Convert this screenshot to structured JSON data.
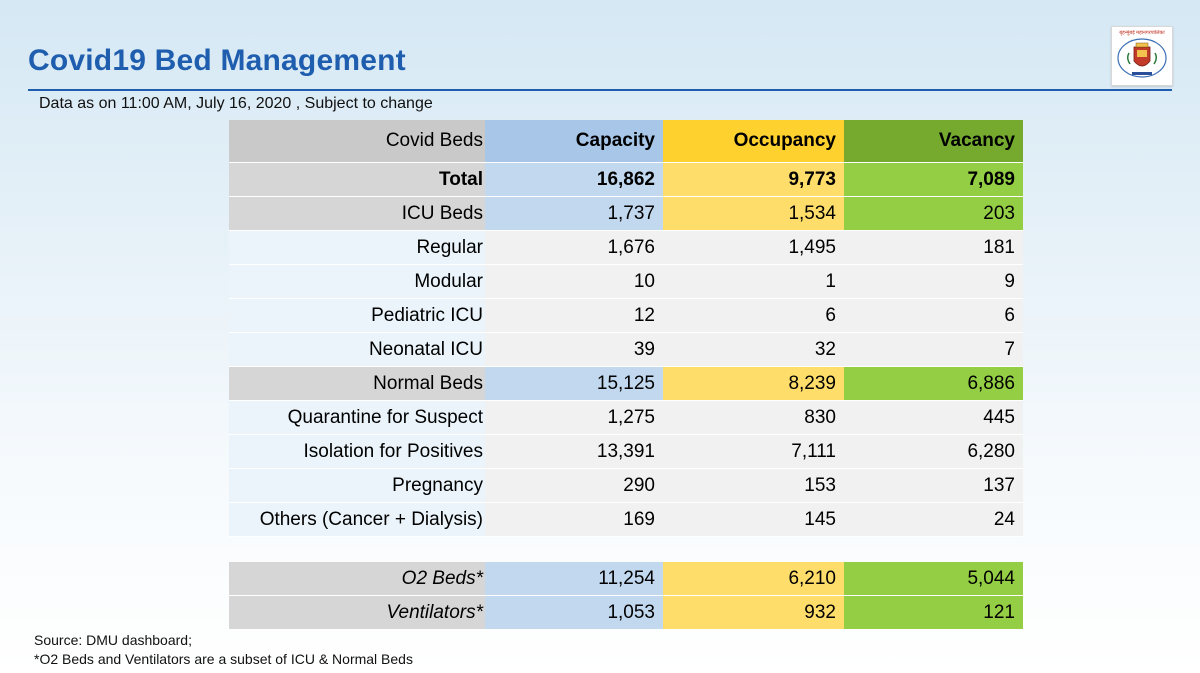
{
  "header": {
    "title": "Covid19 Bed Management",
    "subtitle": "Data as on  11:00 AM, July 16, 2020 , Subject to change",
    "logo_text": "बृहन्मुंबई महानगरपालिका",
    "logo_icon": "municipal-crest-icon"
  },
  "table": {
    "columns": [
      "Covid Beds",
      "Capacity",
      "Occupancy",
      "Vacancy"
    ],
    "rows": [
      {
        "label": "Total",
        "capacity": "16,862",
        "occupancy": "9,773",
        "vacancy": "7,089"
      },
      {
        "label": "ICU Beds",
        "capacity": "1,737",
        "occupancy": "1,534",
        "vacancy": "203"
      },
      {
        "label": "Regular",
        "capacity": "1,676",
        "occupancy": "1,495",
        "vacancy": "181"
      },
      {
        "label": "Modular",
        "capacity": "10",
        "occupancy": "1",
        "vacancy": "9"
      },
      {
        "label": "Pediatric ICU",
        "capacity": "12",
        "occupancy": "6",
        "vacancy": "6"
      },
      {
        "label": "Neonatal ICU",
        "capacity": "39",
        "occupancy": "32",
        "vacancy": "7"
      },
      {
        "label": "Normal Beds",
        "capacity": "15,125",
        "occupancy": "8,239",
        "vacancy": "6,886"
      },
      {
        "label": "Quarantine for Suspect",
        "capacity": "1,275",
        "occupancy": "830",
        "vacancy": "445"
      },
      {
        "label": "Isolation for Positives",
        "capacity": "13,391",
        "occupancy": "7,111",
        "vacancy": "6,280"
      },
      {
        "label": "Pregnancy",
        "capacity": "290",
        "occupancy": "153",
        "vacancy": "137"
      },
      {
        "label": "Others (Cancer + Dialysis)",
        "capacity": "169",
        "occupancy": "145",
        "vacancy": "24"
      }
    ]
  },
  "extra_table": {
    "rows": [
      {
        "label": "O2 Beds*",
        "capacity": "11,254",
        "occupancy": "6,210",
        "vacancy": "5,044"
      },
      {
        "label": "Ventilators*",
        "capacity": "1,053",
        "occupancy": "932",
        "vacancy": "121"
      }
    ]
  },
  "footer": {
    "source": "Source: DMU dashboard;",
    "note": "*O2 Beds and Ventilators are a subset of ICU & Normal Beds"
  },
  "colors": {
    "title_blue": "#1f5eae",
    "capacity_header": "#a7c6e8",
    "occupancy_header": "#ffd12f",
    "vacancy_header": "#75aa2f"
  }
}
